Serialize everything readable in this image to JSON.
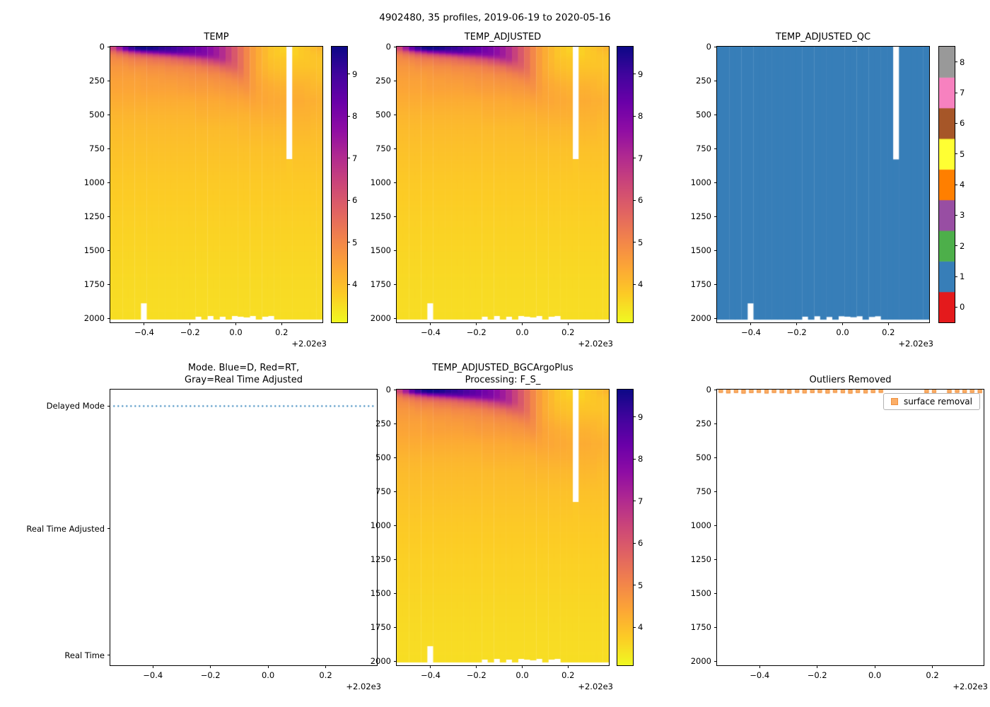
{
  "figure": {
    "suptitle": "4902480, 35 profiles, 2019-06-19 to 2020-05-16"
  },
  "chart_data": {
    "shared_axes": {
      "x_ticks": [
        {
          "v": -0.4,
          "label": "−0.4"
        },
        {
          "v": -0.2,
          "label": "−0.2"
        },
        {
          "v": 0.0,
          "label": "0.0"
        },
        {
          "v": 0.2,
          "label": "0.2"
        }
      ],
      "x_offset_label": "+2.02e3",
      "xlim": [
        -0.548,
        0.378
      ],
      "depth_ticks": [
        0,
        250,
        500,
        750,
        1000,
        1250,
        1500,
        1750,
        2000
      ],
      "depth_lim": [
        0,
        2030
      ]
    },
    "temperature": {
      "colormap": "plasma_r",
      "vmin": 3.1,
      "vmax": 9.65,
      "colorbar_ticks": [
        4,
        5,
        6,
        7,
        8,
        9
      ],
      "depth_levels": [
        0,
        20,
        40,
        60,
        80,
        100,
        150,
        200,
        250,
        300,
        400,
        500,
        600,
        750,
        1000,
        1250,
        1500,
        1750,
        2000
      ],
      "profile_times": [
        -0.535,
        -0.509,
        -0.482,
        -0.456,
        -0.429,
        -0.403,
        -0.376,
        -0.35,
        -0.323,
        -0.297,
        -0.27,
        -0.244,
        -0.217,
        -0.191,
        -0.164,
        -0.138,
        -0.111,
        -0.085,
        -0.059,
        -0.032,
        -0.006,
        0.021,
        0.047,
        0.074,
        0.1,
        0.127,
        0.153,
        0.18,
        0.206,
        0.233,
        0.259,
        0.286,
        0.312,
        0.338,
        0.365
      ],
      "profile_temps": [
        [
          6.5,
          6.3,
          5.6,
          5.2,
          5.0,
          4.9,
          4.7,
          4.6,
          4.5,
          4.45,
          4.3,
          4.15,
          4.05,
          3.95,
          3.8,
          3.7,
          3.62,
          3.55,
          3.5
        ],
        [
          7.5,
          7.2,
          6.0,
          5.4,
          5.1,
          4.9,
          4.7,
          4.6,
          4.5,
          4.45,
          4.3,
          4.15,
          4.05,
          3.95,
          3.8,
          3.7,
          3.62,
          3.55,
          3.5
        ],
        [
          8.5,
          8.2,
          6.5,
          5.6,
          5.2,
          5.0,
          4.7,
          4.6,
          4.5,
          4.45,
          4.3,
          4.15,
          4.05,
          3.95,
          3.8,
          3.7,
          3.62,
          3.55,
          3.5
        ],
        [
          9.2,
          8.9,
          7.0,
          5.9,
          5.4,
          5.1,
          4.8,
          4.6,
          4.5,
          4.45,
          4.3,
          4.15,
          4.05,
          3.95,
          3.8,
          3.7,
          3.62,
          3.55,
          3.5
        ],
        [
          9.6,
          9.3,
          7.4,
          6.1,
          5.5,
          5.2,
          4.8,
          4.6,
          4.5,
          4.45,
          4.3,
          4.15,
          4.05,
          3.95,
          3.8,
          3.7,
          3.62,
          3.55,
          3.5
        ],
        [
          9.7,
          9.5,
          7.8,
          6.3,
          5.6,
          5.2,
          4.8,
          4.65,
          4.55,
          4.5,
          4.3,
          4.15,
          4.05,
          3.95,
          3.8,
          3.7,
          3.62,
          3.55,
          3.5
        ],
        [
          9.6,
          9.5,
          8.0,
          6.5,
          5.7,
          5.3,
          4.9,
          4.7,
          4.55,
          4.5,
          4.3,
          4.15,
          4.05,
          3.95,
          3.8,
          3.7,
          3.62,
          3.55,
          3.5
        ],
        [
          9.5,
          9.4,
          8.2,
          6.7,
          5.8,
          5.4,
          4.9,
          4.7,
          4.55,
          4.5,
          4.3,
          4.15,
          4.05,
          3.95,
          3.8,
          3.7,
          3.62,
          3.55,
          3.5
        ],
        [
          9.3,
          9.2,
          8.4,
          6.9,
          5.9,
          5.4,
          4.9,
          4.7,
          4.6,
          4.5,
          4.3,
          4.15,
          4.05,
          3.95,
          3.8,
          3.7,
          3.62,
          3.55,
          3.5
        ],
        [
          9.2,
          9.1,
          8.5,
          7.1,
          6.0,
          5.5,
          5.0,
          4.75,
          4.6,
          4.5,
          4.3,
          4.15,
          4.05,
          3.95,
          3.8,
          3.7,
          3.62,
          3.55,
          3.5
        ],
        [
          9.0,
          9.0,
          8.6,
          7.3,
          6.2,
          5.6,
          5.0,
          4.75,
          4.6,
          4.5,
          4.3,
          4.15,
          4.05,
          3.95,
          3.8,
          3.7,
          3.62,
          3.55,
          3.5
        ],
        [
          8.8,
          8.8,
          8.5,
          7.5,
          6.4,
          5.7,
          5.0,
          4.8,
          4.65,
          4.55,
          4.3,
          4.15,
          4.05,
          3.95,
          3.8,
          3.7,
          3.62,
          3.55,
          3.5
        ],
        [
          8.6,
          8.6,
          8.4,
          7.6,
          6.5,
          5.8,
          5.1,
          4.8,
          4.65,
          4.55,
          4.3,
          4.15,
          4.05,
          3.95,
          3.8,
          3.7,
          3.62,
          3.55,
          3.5
        ],
        [
          8.4,
          8.4,
          8.3,
          7.7,
          6.7,
          6.0,
          5.1,
          4.85,
          4.7,
          4.6,
          4.3,
          4.15,
          4.05,
          3.95,
          3.8,
          3.7,
          3.62,
          3.55,
          3.5
        ],
        [
          8.2,
          8.2,
          8.1,
          7.8,
          6.9,
          6.1,
          5.2,
          4.9,
          4.7,
          4.6,
          4.35,
          4.2,
          4.05,
          3.95,
          3.8,
          3.7,
          3.62,
          3.55,
          3.5
        ],
        [
          8.0,
          8.0,
          8.0,
          7.8,
          7.1,
          6.3,
          5.3,
          4.9,
          4.7,
          4.6,
          4.35,
          4.2,
          4.05,
          3.95,
          3.8,
          3.7,
          3.62,
          3.55,
          3.5
        ],
        [
          7.7,
          7.7,
          7.7,
          7.6,
          7.2,
          6.5,
          5.4,
          5.0,
          4.75,
          4.6,
          4.35,
          4.2,
          4.05,
          3.95,
          3.8,
          3.7,
          3.62,
          3.55,
          3.5
        ],
        [
          7.4,
          7.4,
          7.4,
          7.4,
          7.2,
          6.7,
          5.5,
          5.0,
          4.8,
          4.65,
          4.35,
          4.2,
          4.05,
          3.95,
          3.8,
          3.7,
          3.62,
          3.55,
          3.5
        ],
        [
          7.0,
          7.0,
          7.0,
          7.0,
          7.0,
          6.8,
          5.7,
          5.1,
          4.8,
          4.65,
          4.35,
          4.2,
          4.05,
          3.95,
          3.8,
          3.7,
          3.62,
          3.55,
          3.5
        ],
        [
          6.5,
          6.5,
          6.5,
          6.5,
          6.5,
          6.4,
          5.8,
          5.2,
          4.85,
          4.7,
          4.4,
          4.2,
          4.05,
          3.95,
          3.8,
          3.7,
          3.62,
          3.55,
          3.5
        ],
        [
          6.0,
          6.0,
          6.0,
          6.0,
          6.0,
          6.0,
          5.8,
          5.3,
          4.9,
          4.7,
          4.4,
          4.2,
          4.05,
          3.95,
          3.8,
          3.7,
          3.62,
          3.55,
          3.5
        ],
        [
          5.5,
          5.5,
          5.5,
          5.5,
          5.5,
          5.5,
          5.5,
          5.3,
          5.0,
          4.75,
          4.4,
          4.2,
          4.1,
          3.95,
          3.8,
          3.7,
          3.62,
          3.55,
          3.5
        ],
        [
          5.0,
          5.0,
          5.0,
          5.0,
          5.0,
          5.0,
          5.0,
          5.0,
          4.9,
          4.8,
          4.45,
          4.2,
          4.1,
          3.95,
          3.8,
          3.7,
          3.62,
          3.55,
          3.5
        ],
        [
          4.6,
          4.6,
          4.6,
          4.6,
          4.6,
          4.6,
          4.6,
          4.6,
          4.6,
          4.6,
          4.45,
          4.25,
          4.1,
          3.95,
          3.8,
          3.7,
          3.62,
          3.55,
          3.5
        ],
        [
          4.3,
          4.3,
          4.3,
          4.3,
          4.3,
          4.3,
          4.3,
          4.35,
          4.4,
          4.45,
          4.4,
          4.25,
          4.1,
          3.95,
          3.8,
          3.7,
          3.62,
          3.55,
          3.5
        ],
        [
          4.1,
          4.1,
          4.1,
          4.1,
          4.1,
          4.1,
          4.15,
          4.2,
          4.3,
          4.35,
          4.4,
          4.25,
          4.1,
          3.95,
          3.8,
          3.7,
          3.62,
          3.55,
          3.5
        ],
        [
          3.9,
          3.9,
          3.9,
          3.9,
          3.9,
          3.95,
          4.0,
          4.1,
          4.2,
          4.3,
          4.35,
          4.25,
          4.1,
          3.95,
          3.8,
          3.7,
          3.62,
          3.55,
          3.5
        ],
        [
          3.8,
          3.8,
          3.8,
          3.8,
          3.85,
          3.9,
          3.95,
          4.05,
          4.15,
          4.25,
          4.35,
          4.25,
          4.1,
          3.95,
          3.8,
          3.7,
          3.62,
          3.55,
          3.5
        ],
        [
          3.7,
          3.7,
          3.7,
          3.75,
          3.8,
          3.85,
          3.9,
          4.0,
          4.1,
          4.2,
          4.3,
          4.25,
          4.1,
          3.95,
          3.8,
          3.7,
          3.62,
          3.55,
          3.5
        ],
        [
          null,
          null,
          null,
          null,
          null,
          null,
          null,
          null,
          null,
          null,
          null,
          null,
          null,
          3.85,
          3.8,
          3.7,
          3.62,
          3.55,
          3.5
        ],
        [
          3.7,
          3.7,
          3.7,
          3.7,
          3.75,
          3.8,
          3.9,
          4.0,
          4.1,
          4.2,
          4.3,
          4.2,
          4.1,
          3.95,
          3.8,
          3.7,
          3.62,
          3.55,
          3.5
        ],
        [
          3.8,
          3.8,
          3.8,
          3.8,
          3.8,
          3.85,
          3.9,
          4.0,
          4.1,
          4.2,
          4.3,
          4.2,
          4.1,
          3.95,
          3.8,
          3.7,
          3.62,
          3.55,
          3.5
        ],
        [
          3.9,
          3.9,
          3.85,
          3.85,
          3.85,
          3.85,
          3.9,
          4.0,
          4.1,
          4.15,
          4.25,
          4.2,
          4.1,
          3.95,
          3.8,
          3.7,
          3.62,
          3.55,
          3.5
        ],
        [
          4.0,
          4.0,
          3.95,
          3.9,
          3.9,
          3.9,
          3.9,
          4.0,
          4.05,
          4.1,
          4.25,
          4.15,
          4.05,
          3.95,
          3.8,
          3.7,
          3.62,
          3.55,
          3.5
        ],
        [
          4.2,
          4.1,
          4.0,
          3.95,
          3.9,
          3.9,
          3.9,
          3.95,
          4.0,
          4.1,
          4.2,
          4.15,
          4.05,
          3.95,
          3.8,
          3.7,
          3.62,
          3.55,
          3.5
        ]
      ],
      "profile_zmin": {
        "29": 830
      },
      "profile_zmax": {
        "5": 1890,
        "14": 1988,
        "16": 1985,
        "18": 1990,
        "20": 1985,
        "21": 1988,
        "22": 1992,
        "23": 1985,
        "25": 1990,
        "26": 1985
      },
      "default_zmax": 2010
    },
    "qc": {
      "displayed_value": 1,
      "palette": [
        "#e41a1c",
        "#377eb8",
        "#4daf4a",
        "#984ea3",
        "#ff7f00",
        "#ffff33",
        "#a65628",
        "#f781bf",
        "#999999"
      ],
      "colorbar_ticks": [
        0,
        1,
        2,
        3,
        4,
        5,
        6,
        7,
        8
      ]
    },
    "plots": [
      {
        "id": "temp",
        "type": "heatmap",
        "title": "TEMP"
      },
      {
        "id": "temp_adjusted",
        "type": "heatmap",
        "title": "TEMP_ADJUSTED"
      },
      {
        "id": "temp_adjusted_qc",
        "type": "heatmap_qc",
        "title": "TEMP_ADJUSTED_QC"
      },
      {
        "id": "mode",
        "type": "category_line",
        "title_lines": [
          "Mode. Blue=D, Red=RT,",
          "Gray=Real Time Adjusted"
        ],
        "categories": [
          "Delayed Mode",
          "Real Time Adjusted",
          "Real Time"
        ],
        "values": [
          "D",
          "D",
          "D",
          "D",
          "D",
          "D",
          "D",
          "D",
          "D",
          "D",
          "D",
          "D",
          "D",
          "D",
          "D",
          "D",
          "D",
          "D",
          "D",
          "D",
          "D",
          "D",
          "D",
          "D",
          "D",
          "D",
          "D",
          "D",
          "D",
          "D",
          "D",
          "D",
          "D",
          "D",
          "D"
        ],
        "line_color": "#1f77b4"
      },
      {
        "id": "bgc",
        "type": "heatmap",
        "title_lines": [
          "TEMP_ADJUSTED_BGCArgoPlus",
          "Processing: F_S_"
        ]
      },
      {
        "id": "outliers",
        "type": "scatter",
        "title": "Outliers Removed",
        "legend_label": "surface removal",
        "marker_color": "#fbae67",
        "marker_edge": "#ee9040",
        "points": [
          [
            -0.535,
            8
          ],
          [
            -0.509,
            12
          ],
          [
            -0.482,
            9
          ],
          [
            -0.456,
            14
          ],
          [
            -0.429,
            10
          ],
          [
            -0.403,
            8
          ],
          [
            -0.376,
            13
          ],
          [
            -0.35,
            9
          ],
          [
            -0.323,
            11
          ],
          [
            -0.297,
            15
          ],
          [
            -0.27,
            8
          ],
          [
            -0.244,
            12
          ],
          [
            -0.217,
            10
          ],
          [
            -0.191,
            9
          ],
          [
            -0.164,
            13
          ],
          [
            -0.138,
            8
          ],
          [
            -0.111,
            11
          ],
          [
            -0.085,
            14
          ],
          [
            -0.059,
            9
          ],
          [
            -0.032,
            12
          ],
          [
            -0.006,
            10
          ],
          [
            0.021,
            8
          ],
          [
            0.18,
            11
          ],
          [
            0.206,
            9
          ],
          [
            0.259,
            12
          ],
          [
            0.286,
            8
          ],
          [
            0.312,
            10
          ],
          [
            0.338,
            9
          ],
          [
            0.365,
            11
          ]
        ]
      }
    ]
  }
}
